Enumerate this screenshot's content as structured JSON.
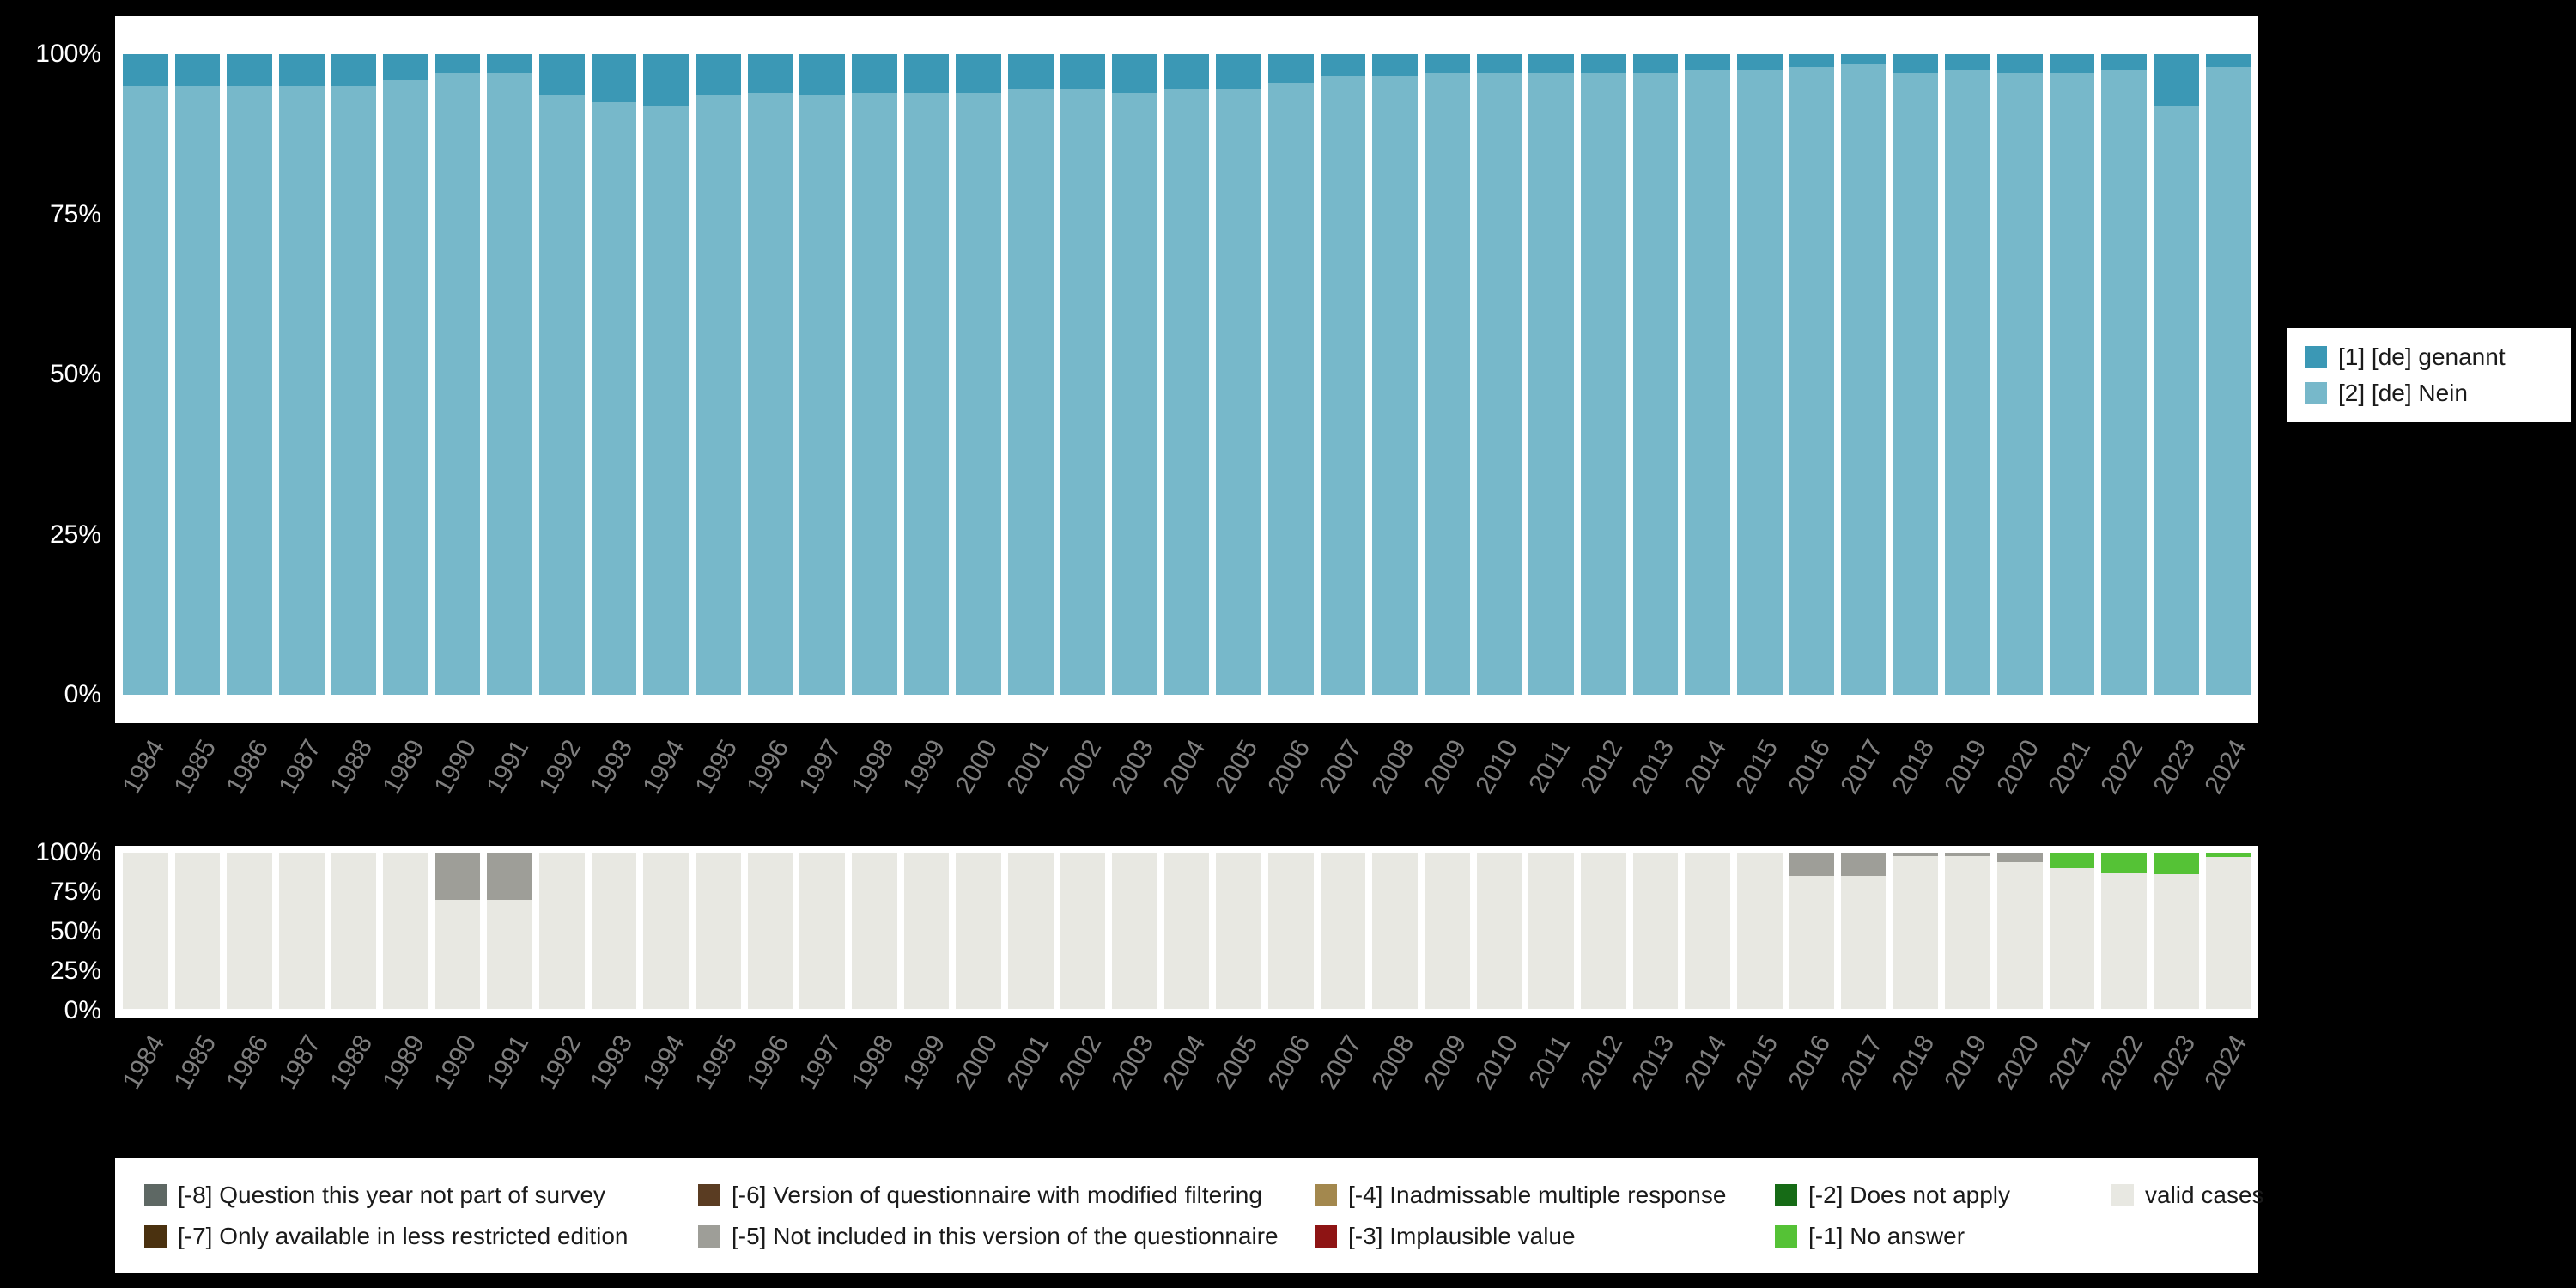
{
  "page": {
    "background": "#000000",
    "panel_background": "#ffffff",
    "axis_tick_color": "#ffffff",
    "year_label_color": "#7f7f7f"
  },
  "chart_data": [
    {
      "id": "main_chart",
      "type": "bar",
      "stacked": true,
      "title": "",
      "xlabel": "",
      "ylabel": "",
      "ylim": [
        0,
        100
      ],
      "grid": false,
      "legend_position": "right",
      "yticks": [
        "100%",
        "75%",
        "50%",
        "25%",
        "0%"
      ],
      "categories": [
        "1984",
        "1985",
        "1986",
        "1987",
        "1988",
        "1989",
        "1990",
        "1991",
        "1992",
        "1993",
        "1994",
        "1995",
        "1996",
        "1997",
        "1998",
        "1999",
        "2000",
        "2001",
        "2002",
        "2003",
        "2004",
        "2005",
        "2006",
        "2007",
        "2008",
        "2009",
        "2010",
        "2011",
        "2012",
        "2013",
        "2014",
        "2015",
        "2016",
        "2017",
        "2018",
        "2019",
        "2020",
        "2021",
        "2022",
        "2023",
        "2024"
      ],
      "series": [
        {
          "name": "[2] [de] Nein",
          "color": "#77b8ca",
          "values": [
            95,
            95,
            95,
            95,
            95,
            96,
            97,
            97,
            93.5,
            92.5,
            92,
            93.5,
            94,
            93.5,
            94,
            94,
            94,
            94.5,
            94.5,
            94,
            94.5,
            94.5,
            95.5,
            96.5,
            96.5,
            97,
            97,
            97,
            97,
            97,
            97.5,
            97.5,
            98,
            98.5,
            97,
            97.5,
            97,
            97,
            97.5,
            92,
            98
          ]
        },
        {
          "name": "[1] [de] genannt",
          "color": "#3b98b5",
          "values": [
            5,
            5,
            5,
            5,
            5,
            4,
            3,
            3,
            6.5,
            7.5,
            8,
            6.5,
            6,
            6.5,
            6,
            6,
            6,
            5.5,
            5.5,
            6,
            5.5,
            5.5,
            4.5,
            3.5,
            3.5,
            3,
            3,
            3,
            3,
            3,
            2.5,
            2.5,
            2,
            1.5,
            3,
            2.5,
            3,
            3,
            2.5,
            8,
            2
          ]
        }
      ],
      "legend": [
        {
          "label": "[1] [de] genannt",
          "color": "#3b98b5"
        },
        {
          "label": "[2] [de] Nein",
          "color": "#77b8ca"
        }
      ]
    },
    {
      "id": "missing_values_chart",
      "type": "bar",
      "stacked": true,
      "title": "",
      "xlabel": "",
      "ylabel": "",
      "ylim": [
        0,
        100
      ],
      "grid": false,
      "yticks": [
        "100%",
        "75%",
        "50%",
        "25%",
        "0%"
      ],
      "categories": [
        "1984",
        "1985",
        "1986",
        "1987",
        "1988",
        "1989",
        "1990",
        "1991",
        "1992",
        "1993",
        "1994",
        "1995",
        "1996",
        "1997",
        "1998",
        "1999",
        "2000",
        "2001",
        "2002",
        "2003",
        "2004",
        "2005",
        "2006",
        "2007",
        "2008",
        "2009",
        "2010",
        "2011",
        "2012",
        "2013",
        "2014",
        "2015",
        "2016",
        "2017",
        "2018",
        "2019",
        "2020",
        "2021",
        "2022",
        "2023",
        "2024"
      ],
      "series": [
        {
          "name": "valid cases",
          "color": "#e8e8e2",
          "values": [
            100,
            100,
            100,
            100,
            100,
            100,
            70,
            70,
            100,
            100,
            100,
            100,
            100,
            100,
            100,
            100,
            100,
            100,
            100,
            100,
            100,
            100,
            100,
            100,
            100,
            100,
            100,
            100,
            100,
            100,
            100,
            100,
            85,
            85,
            98,
            98,
            94,
            90,
            87,
            86,
            97
          ]
        },
        {
          "name": "[-5] Not included in this version of the questionnaire",
          "color": "#9e9e98",
          "values": [
            0,
            0,
            0,
            0,
            0,
            0,
            30,
            30,
            0,
            0,
            0,
            0,
            0,
            0,
            0,
            0,
            0,
            0,
            0,
            0,
            0,
            0,
            0,
            0,
            0,
            0,
            0,
            0,
            0,
            0,
            0,
            0,
            15,
            15,
            2,
            2,
            6,
            0,
            0,
            0,
            0
          ]
        },
        {
          "name": "[-1] No answer",
          "color": "#55c236",
          "values": [
            0,
            0,
            0,
            0,
            0,
            0,
            0,
            0,
            0,
            0,
            0,
            0,
            0,
            0,
            0,
            0,
            0,
            0,
            0,
            0,
            0,
            0,
            0,
            0,
            0,
            0,
            0,
            0,
            0,
            0,
            0,
            0,
            0,
            0,
            0,
            0,
            0,
            10,
            13,
            14,
            3
          ]
        }
      ]
    }
  ],
  "missing_legend": {
    "items": [
      {
        "label": "[-8] Question this year not part of survey",
        "color": "#5e6864"
      },
      {
        "label": "[-6] Version of questionnaire with modified filtering",
        "color": "#5a3c22"
      },
      {
        "label": "[-4] Inadmissable multiple response",
        "color": "#a3884e"
      },
      {
        "label": "[-2] Does not apply",
        "color": "#166b16"
      },
      {
        "label": "valid cases",
        "color": "#e8e8e2"
      },
      {
        "label": "[-7] Only available in less restricted edition",
        "color": "#4a310f"
      },
      {
        "label": "[-5] Not included in this version of the questionnaire",
        "color": "#9e9e98"
      },
      {
        "label": "[-3] Implausible value",
        "color": "#8e1414"
      },
      {
        "label": "[-1] No answer",
        "color": "#55c236"
      }
    ]
  }
}
